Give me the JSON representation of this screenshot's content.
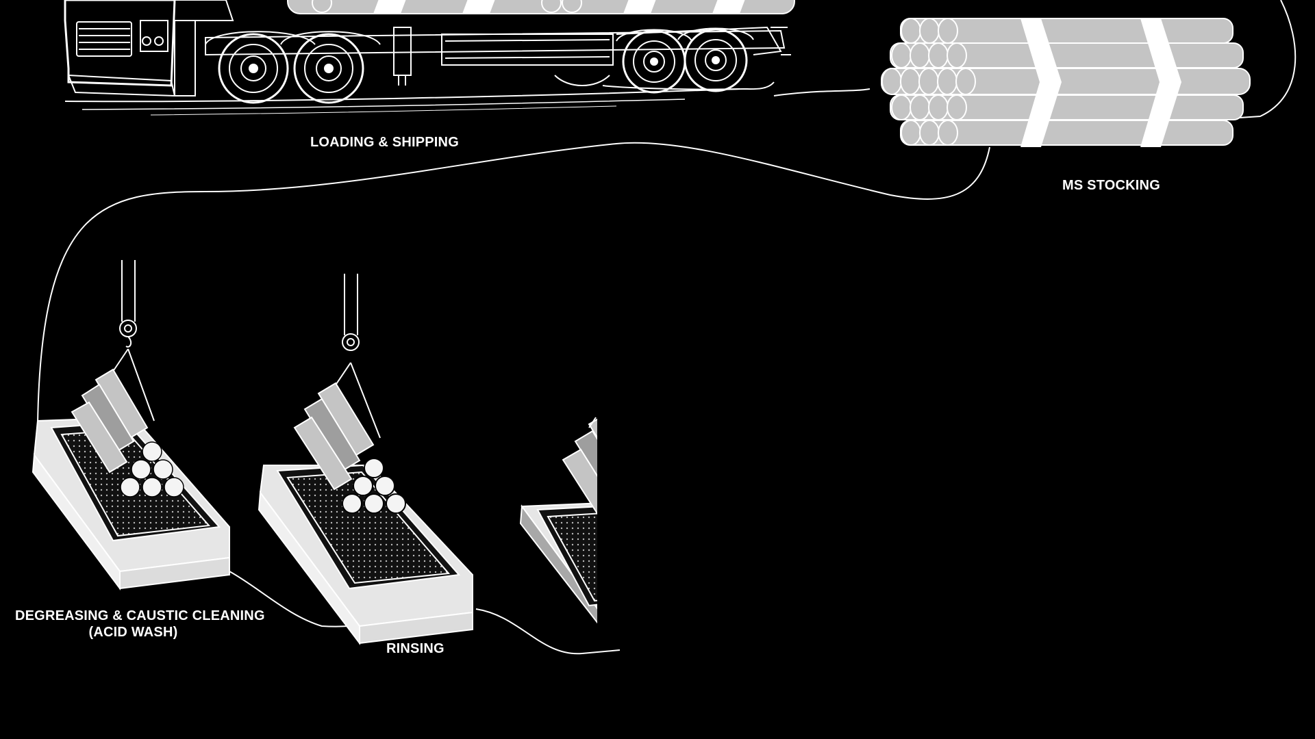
{
  "stages": {
    "loading_shipping": "LOADING & SHIPPING",
    "ms_stocking": "MS STOCKING",
    "degreasing_line1": "DEGREASING & CAUSTIC CLEANING",
    "degreasing_line2": "(ACID WASH)",
    "rinsing": "RINSING"
  },
  "colors": {
    "background": "#000000",
    "line": "#ffffff",
    "pipe_fill": "#c4c4c4",
    "tank_light": "#e6e6e6",
    "tank_dark": "#a8a8a8"
  }
}
